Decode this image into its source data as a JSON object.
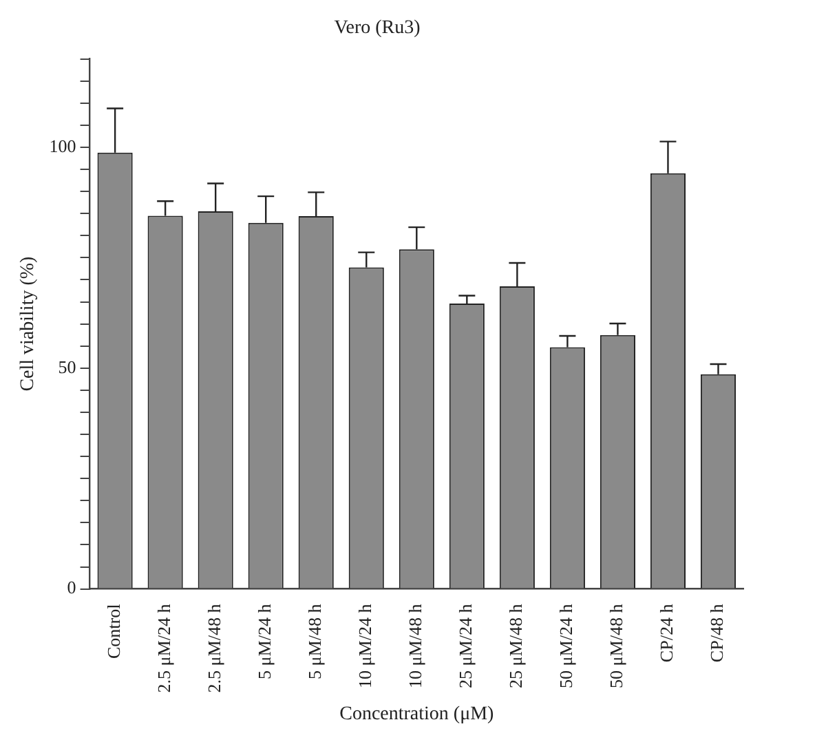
{
  "chart_data": {
    "type": "bar",
    "title": "Vero (Ru3)",
    "xlabel": "Concentration (μM)",
    "ylabel": "Cell viability (%)",
    "categories": [
      "Control",
      "2.5 μM/24 h",
      "2.5 μM/48 h",
      "5 μM/24 h",
      "5 μM/48 h",
      "10 μM/24 h",
      "10 μM/48 h",
      "25 μM/24 h",
      "25 μM/48 h",
      "50 μM/24 h",
      "50 μM/48 h",
      "CP/24 h",
      "CP/48 h"
    ],
    "values": [
      98.8,
      84.5,
      85.5,
      82.9,
      84.4,
      72.8,
      76.9,
      64.6,
      68.5,
      54.7,
      57.5,
      94.1,
      48.6
    ],
    "errors": [
      [
        98.8,
        108.8
      ],
      [
        84.5,
        87.8
      ],
      [
        85.5,
        91.8
      ],
      [
        82.9,
        88.9
      ],
      [
        84.4,
        89.8
      ],
      [
        72.8,
        76.2
      ],
      [
        76.9,
        81.9
      ],
      [
        64.6,
        66.4
      ],
      [
        68.5,
        73.8
      ],
      [
        54.7,
        57.3
      ],
      [
        57.5,
        60.1
      ],
      [
        94.1,
        101.3
      ],
      [
        48.6,
        50.9
      ]
    ],
    "color": "#8a8a8a",
    "ylim": [
      0,
      120
    ],
    "yticks": [
      0,
      {
        "value": 5,
        "label": null
      },
      {
        "value": 10,
        "label": null
      },
      {
        "value": 15,
        "label": null
      },
      {
        "value": 20,
        "label": null
      },
      {
        "value": 25,
        "label": null
      },
      {
        "value": 30,
        "label": null
      },
      {
        "value": 35,
        "label": null
      },
      {
        "value": 40,
        "label": null
      },
      {
        "value": 45,
        "label": null
      },
      50,
      {
        "value": 55,
        "label": null
      },
      {
        "value": 60,
        "label": null
      },
      {
        "value": 65,
        "label": null
      },
      {
        "value": 70,
        "label": null
      },
      {
        "value": 75,
        "label": null
      },
      {
        "value": 80,
        "label": null
      },
      {
        "value": 85,
        "label": null
      },
      {
        "value": 90,
        "label": null
      },
      {
        "value": 95,
        "label": null
      },
      100,
      {
        "value": 105,
        "label": null
      },
      {
        "value": 110,
        "label": null
      },
      {
        "value": 115,
        "label": null
      },
      {
        "value": 120,
        "label": null
      }
    ]
  }
}
